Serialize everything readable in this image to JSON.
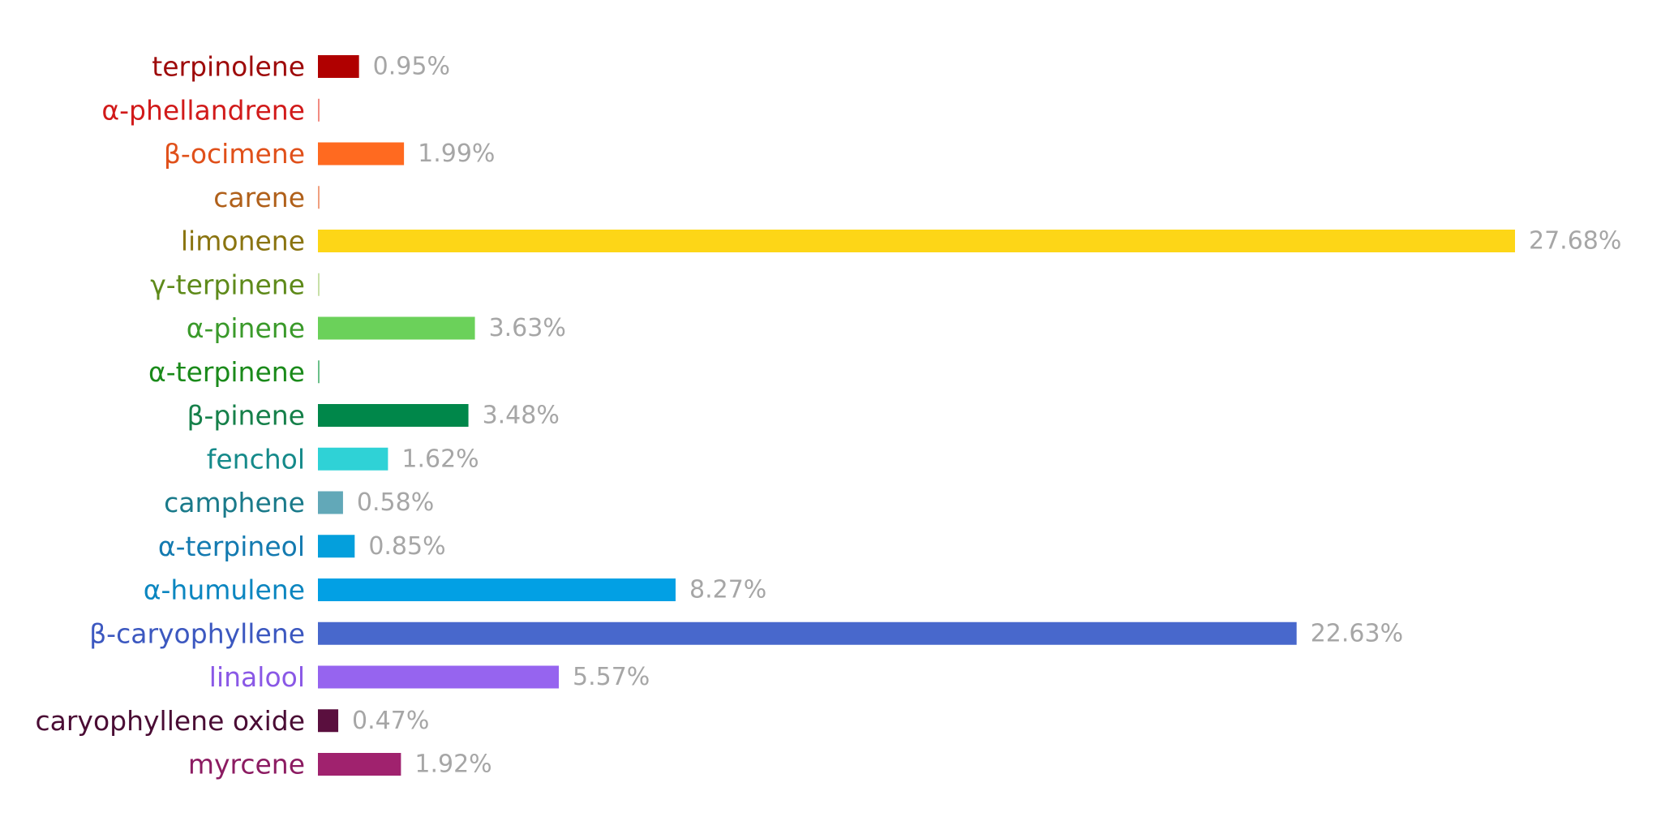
{
  "chart_data": {
    "type": "bar",
    "orientation": "horizontal",
    "title": "",
    "xlabel": "",
    "ylabel": "",
    "grid": false,
    "legend": "none",
    "xlim": [
      0,
      27.68
    ],
    "value_suffix": "%",
    "bars": [
      {
        "category": "terpinolene",
        "value": 0.95,
        "label": "0.95%",
        "bar_color": "#b00000",
        "text_color": "#9e0a0a"
      },
      {
        "category": "α-phellandrene",
        "value": 0.02,
        "label": "",
        "bar_color": "#f28b82",
        "text_color": "#d11a1a"
      },
      {
        "category": "β-ocimene",
        "value": 1.99,
        "label": "1.99%",
        "bar_color": "#ff6a20",
        "text_color": "#e0501a"
      },
      {
        "category": "carene",
        "value": 0.02,
        "label": "",
        "bar_color": "#f0a080",
        "text_color": "#b0601a"
      },
      {
        "category": "limonene",
        "value": 27.68,
        "label": "27.68%",
        "bar_color": "#fdd617",
        "text_color": "#8a7410"
      },
      {
        "category": "γ-terpinene",
        "value": 0.02,
        "label": "",
        "bar_color": "#c8e0a8",
        "text_color": "#5e8a1a"
      },
      {
        "category": "α-pinene",
        "value": 3.63,
        "label": "3.63%",
        "bar_color": "#6bd15a",
        "text_color": "#3a9a2a"
      },
      {
        "category": "α-terpinene",
        "value": 0.02,
        "label": "",
        "bar_color": "#6bc08a",
        "text_color": "#1a8a1a"
      },
      {
        "category": "β-pinene",
        "value": 3.48,
        "label": "3.48%",
        "bar_color": "#00874a",
        "text_color": "#16804a"
      },
      {
        "category": "fenchol",
        "value": 1.62,
        "label": "1.62%",
        "bar_color": "#2fd2d6",
        "text_color": "#158a8a"
      },
      {
        "category": "camphene",
        "value": 0.58,
        "label": "0.58%",
        "bar_color": "#62a8b8",
        "text_color": "#1a7a8a"
      },
      {
        "category": "α-terpineol",
        "value": 0.85,
        "label": "0.85%",
        "bar_color": "#049fdc",
        "text_color": "#137ab0"
      },
      {
        "category": "α-humulene",
        "value": 8.27,
        "label": "8.27%",
        "bar_color": "#02a0e4",
        "text_color": "#0b86c0"
      },
      {
        "category": "β-caryophyllene",
        "value": 22.63,
        "label": "22.63%",
        "bar_color": "#4868cc",
        "text_color": "#3c58c0"
      },
      {
        "category": "linalool",
        "value": 5.57,
        "label": "5.57%",
        "bar_color": "#9664ef",
        "text_color": "#8a58e6"
      },
      {
        "category": "caryophyllene oxide",
        "value": 0.47,
        "label": "0.47%",
        "bar_color": "#5a0f3e",
        "text_color": "#4a0c34"
      },
      {
        "category": "myrcene",
        "value": 1.92,
        "label": "1.92%",
        "bar_color": "#a0226e",
        "text_color": "#8c1c62"
      }
    ]
  }
}
